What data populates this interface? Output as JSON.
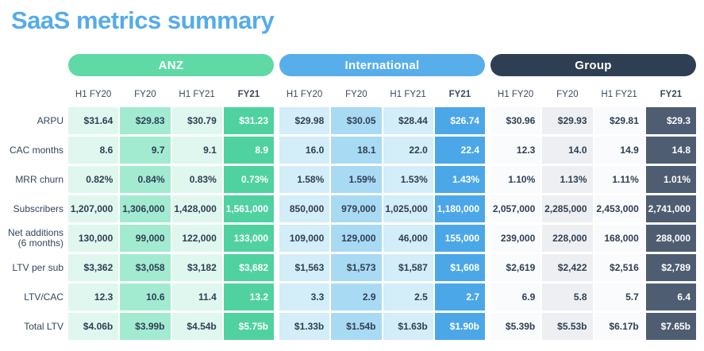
{
  "title": "SaaS metrics summary",
  "colors": {
    "title_blue": "#55ace9",
    "anz_pill": "#5fd9a6",
    "anz_strong": "#4fd2a0",
    "anz_mid": "#a2ebd1",
    "anz_light": "#dff7ee",
    "intl_pill": "#58aeea",
    "intl_strong": "#4ba7e7",
    "intl_mid": "#a9daf4",
    "intl_light": "#d3edf9",
    "group_pill": "#2f3f53",
    "group_strong": "#4e5d71",
    "group_mid": "#edeff2",
    "group_light": "#fafbfc",
    "text_dark": "#34455b"
  },
  "chart_data": {
    "type": "table",
    "title": "SaaS metrics summary",
    "sections": [
      {
        "label": "ANZ",
        "columns": [
          "H1 FY20",
          "FY20",
          "H1 FY21",
          "FY21"
        ]
      },
      {
        "label": "International",
        "columns": [
          "H1 FY20",
          "FY20",
          "H1 FY21",
          "FY21"
        ]
      },
      {
        "label": "Group",
        "columns": [
          "H1 FY20",
          "FY20",
          "H1 FY21",
          "FY21"
        ]
      }
    ],
    "rows": [
      {
        "label": "ARPU",
        "anz": [
          "$31.64",
          "$29.83",
          "$30.79",
          "$31.23"
        ],
        "intl": [
          "$29.98",
          "$30.05",
          "$28.44",
          "$26.74"
        ],
        "group": [
          "$30.96",
          "$29.93",
          "$29.81",
          "$29.3"
        ]
      },
      {
        "label": "CAC months",
        "anz": [
          "8.6",
          "9.7",
          "9.1",
          "8.9"
        ],
        "intl": [
          "16.0",
          "18.1",
          "22.0",
          "22.4"
        ],
        "group": [
          "12.3",
          "14.0",
          "14.9",
          "14.8"
        ]
      },
      {
        "label": "MRR churn",
        "anz": [
          "0.82%",
          "0.84%",
          "0.83%",
          "0.73%"
        ],
        "intl": [
          "1.58%",
          "1.59%",
          "1.53%",
          "1.43%"
        ],
        "group": [
          "1.10%",
          "1.13%",
          "1.11%",
          "1.01%"
        ]
      },
      {
        "label": "Subscribers",
        "anz": [
          "1,207,000",
          "1,306,000",
          "1,428,000",
          "1,561,000"
        ],
        "intl": [
          "850,000",
          "979,000",
          "1,025,000",
          "1,180,000"
        ],
        "group": [
          "2,057,000",
          "2,285,000",
          "2,453,000",
          "2,741,000"
        ]
      },
      {
        "label": "Net additions (6 months)",
        "anz": [
          "130,000",
          "99,000",
          "122,000",
          "133,000"
        ],
        "intl": [
          "109,000",
          "129,000",
          "46,000",
          "155,000"
        ],
        "group": [
          "239,000",
          "228,000",
          "168,000",
          "288,000"
        ]
      },
      {
        "label": "LTV per sub",
        "anz": [
          "$3,362",
          "$3,058",
          "$3,182",
          "$3,682"
        ],
        "intl": [
          "$1,563",
          "$1,573",
          "$1,587",
          "$1,608"
        ],
        "group": [
          "$2,619",
          "$2,422",
          "$2,516",
          "$2,789"
        ]
      },
      {
        "label": "LTV/CAC",
        "anz": [
          "12.3",
          "10.6",
          "11.4",
          "13.2"
        ],
        "intl": [
          "3.3",
          "2.9",
          "2.5",
          "2.7"
        ],
        "group": [
          "6.9",
          "5.8",
          "5.7",
          "6.4"
        ]
      },
      {
        "label": "Total LTV",
        "anz": [
          "$4.06b",
          "$3.99b",
          "$4.54b",
          "$5.75b"
        ],
        "intl": [
          "$1.33b",
          "$1.54b",
          "$1.63b",
          "$1.90b"
        ],
        "group": [
          "$5.39b",
          "$5.53b",
          "$6.17b",
          "$7.65b"
        ]
      }
    ]
  }
}
